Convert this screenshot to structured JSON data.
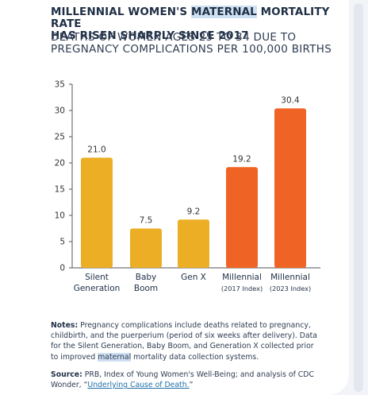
{
  "title": {
    "line1_pre": "MILLENNIAL WOMEN'S ",
    "line1_highlight": "MATERNAL",
    "line1_post": " MORTALITY RATE",
    "line2": "HAS RISEN SHARPLY SINCE 2017"
  },
  "subtitle": {
    "line1": "DEATHS OF WOMEN AGES 25 TO 34 DUE TO",
    "line2": "PREGNANCY COMPLICATIONS PER 100,000 BIRTHS"
  },
  "chart_data": {
    "type": "bar",
    "categories": [
      {
        "line1": "Silent",
        "line2": "Generation",
        "small": false
      },
      {
        "line1": "Baby",
        "line2": "Boom",
        "small": false
      },
      {
        "line1": "Gen X",
        "line2": "",
        "small": false
      },
      {
        "line1": "Millennial",
        "line2": "(2017 Index)",
        "small": true
      },
      {
        "line1": "Millennial",
        "line2": "(2023 Index)",
        "small": true
      }
    ],
    "values": [
      21.0,
      7.5,
      9.2,
      19.2,
      30.4
    ],
    "value_labels": [
      "21.0",
      "7.5",
      "9.2",
      "19.2",
      "30.4"
    ],
    "colors": [
      "#ecae24",
      "#ecae24",
      "#ecae24",
      "#ef6424",
      "#ef6424"
    ],
    "yticks": [
      "0",
      "5",
      "10",
      "15",
      "20",
      "25",
      "30",
      "35"
    ],
    "ylim": [
      0,
      35
    ],
    "grid": false
  },
  "notes": {
    "label": "Notes:",
    "text_pre": " Pregnancy complications include deaths related to pregnancy, childbirth, and the puerperium (period of six weeks after delivery). Data for the Silent Generation, Baby Boom, and Generation X collected prior to improved ",
    "text_highlight": "maternal",
    "text_post": " mortality data collection systems."
  },
  "source": {
    "label": "Source:",
    "text_pre": " PRB, Index of Young Women's Well-Being; and analysis of CDC Wonder, “",
    "link": "Underlying Cause of Death.",
    "text_post": "”"
  },
  "colors": {
    "accent_highlight": "#cfe0f2",
    "text": "#1f2f45",
    "link": "#1f6fa8"
  }
}
